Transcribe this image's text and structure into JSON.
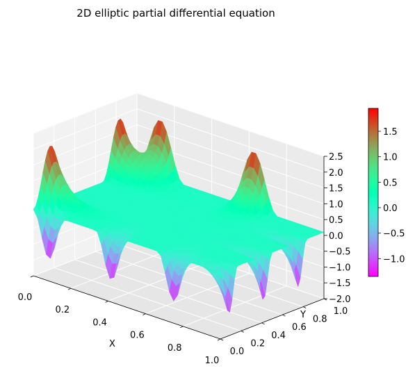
{
  "chart_data": {
    "type": "surface3d",
    "title": "2D elliptic partial differential equation",
    "xlabel": "X",
    "ylabel": "Y",
    "zlabel": "",
    "xlim": [
      0,
      1
    ],
    "ylim": [
      0,
      1
    ],
    "zlim": [
      -2.0,
      2.5
    ],
    "x_ticks": [
      "0.0",
      "0.2",
      "0.4",
      "0.6",
      "0.8",
      "1.0"
    ],
    "y_ticks": [
      "0.0",
      "0.2",
      "0.4",
      "0.6",
      "0.8",
      "1.0"
    ],
    "z_ticks": [
      "−2.0",
      "−1.5",
      "−1.0",
      "−0.5",
      "0.0",
      "0.5",
      "1.0",
      "1.5",
      "2.0",
      "2.5"
    ],
    "colormap": "rainbow",
    "colorbar": {
      "min": -1.35,
      "max": 1.95,
      "ticks": [
        "−1.0",
        "−0.5",
        "0.0",
        "0.5",
        "1.0",
        "1.5"
      ],
      "tick_values": [
        -1.0,
        -0.5,
        0.0,
        0.5,
        1.0,
        1.5
      ]
    },
    "surface": {
      "description_values": {
        "edge_y1_peaks": 4,
        "edge_x0_peaks": 3,
        "edge_y0_troughs": 6,
        "edge_x1_troughs": 6,
        "interior_value": 0.1,
        "peak_value": 1.9,
        "trough_value": -1.3
      }
    },
    "grid": true,
    "legend": "colorbar-right"
  }
}
